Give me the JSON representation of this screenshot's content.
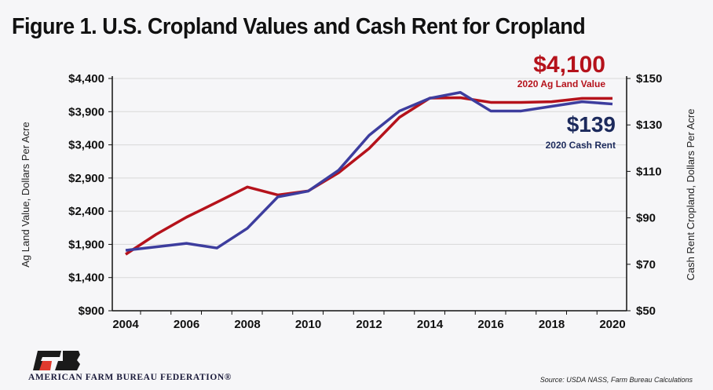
{
  "chart_data": {
    "type": "line",
    "title": "Figure 1. U.S. Cropland Values and Cash Rent for Cropland",
    "x": [
      2004,
      2005,
      2006,
      2007,
      2008,
      2009,
      2010,
      2011,
      2012,
      2013,
      2014,
      2015,
      2016,
      2017,
      2018,
      2019,
      2020
    ],
    "xticks": [
      "2004",
      "2006",
      "2008",
      "2010",
      "2012",
      "2014",
      "2016",
      "2018",
      "2020"
    ],
    "ylabel_left": "Ag Land Value, Dollars Per Acre",
    "ylabel_right": "Cash Rent Cropland, Dollars Per Acre",
    "ylim_left": [
      900,
      4400
    ],
    "ylim_right": [
      50,
      150
    ],
    "yticks_left": [
      "$900",
      "$1,400",
      "$1,900",
      "$2,400",
      "$2,900",
      "$3,400",
      "$3,900",
      "$4,400"
    ],
    "yticks_right": [
      "$50",
      "$70",
      "$90",
      "$110",
      "$130",
      "$150"
    ],
    "grid": true,
    "series": [
      {
        "axis": "left",
        "color": "#b5121b",
        "values": [
          1750,
          2050,
          2310,
          2535,
          2765,
          2645,
          2705,
          2980,
          3345,
          3815,
          4105,
          4110,
          4040,
          4040,
          4050,
          4100,
          4100
        ]
      },
      {
        "axis": "right",
        "color": "#3d3d9e",
        "values": [
          76,
          77.5,
          79,
          77,
          85.5,
          99,
          101.5,
          110.5,
          125.5,
          136,
          141.5,
          144,
          136,
          136,
          138,
          140,
          139
        ]
      }
    ],
    "annotations": [
      {
        "value": "$4,100",
        "label": "2020 Ag Land Value",
        "color": "#b5121b"
      },
      {
        "value": "$139",
        "label": "2020 Cash Rent",
        "color": "#1c2a5c"
      }
    ]
  },
  "footer": {
    "org": "AMERICAN FARM BUREAU FEDERATION®",
    "source": "Source: USDA NASS, Farm Bureau Calculations"
  }
}
